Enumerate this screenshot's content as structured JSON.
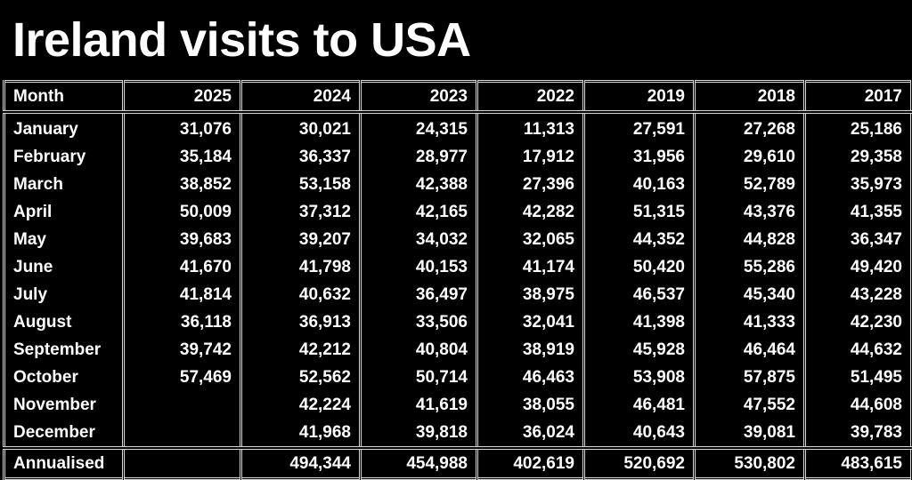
{
  "title": "Ireland visits to USA",
  "chart_data": {
    "type": "table",
    "title": "Ireland visits to USA",
    "columns": [
      "Month",
      "2025",
      "2024",
      "2023",
      "2022",
      "2019",
      "2018",
      "2017"
    ],
    "rows": [
      [
        "January",
        "31,076",
        "30,021",
        "24,315",
        "11,313",
        "27,591",
        "27,268",
        "25,186"
      ],
      [
        "February",
        "35,184",
        "36,337",
        "28,977",
        "17,912",
        "31,956",
        "29,610",
        "29,358"
      ],
      [
        "March",
        "38,852",
        "53,158",
        "42,388",
        "27,396",
        "40,163",
        "52,789",
        "35,973"
      ],
      [
        "April",
        "50,009",
        "37,312",
        "42,165",
        "42,282",
        "51,315",
        "43,376",
        "41,355"
      ],
      [
        "May",
        "39,683",
        "39,207",
        "34,032",
        "32,065",
        "44,352",
        "44,828",
        "36,347"
      ],
      [
        "June",
        "41,670",
        "41,798",
        "40,153",
        "41,174",
        "50,420",
        "55,286",
        "49,420"
      ],
      [
        "July",
        "41,814",
        "40,632",
        "36,497",
        "38,975",
        "46,537",
        "45,340",
        "43,228"
      ],
      [
        "August",
        "36,118",
        "36,913",
        "33,506",
        "32,041",
        "41,398",
        "41,333",
        "42,230"
      ],
      [
        "September",
        "39,742",
        "42,212",
        "40,804",
        "38,919",
        "45,928",
        "46,464",
        "44,632"
      ],
      [
        "October",
        "57,469",
        "52,562",
        "50,714",
        "46,463",
        "53,908",
        "57,875",
        "51,495"
      ],
      [
        "November",
        "",
        "42,224",
        "41,619",
        "38,055",
        "46,481",
        "47,552",
        "44,608"
      ],
      [
        "December",
        "",
        "41,968",
        "39,818",
        "36,024",
        "40,643",
        "39,081",
        "39,783"
      ]
    ],
    "total_row": [
      "Annualised",
      "",
      "494,344",
      "454,988",
      "402,619",
      "520,692",
      "530,802",
      "483,615"
    ],
    "colors": {
      "background": "#000000",
      "text": "#ffffff",
      "border": "#d8d8d8"
    }
  }
}
